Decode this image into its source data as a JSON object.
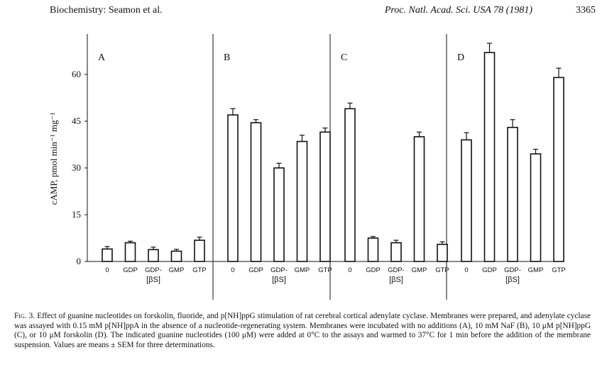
{
  "header": {
    "left": "Biochemistry: Seamon et al.",
    "journal": "Proc. Natl. Acad. Sci. USA 78 (1981)",
    "page_number": "3365"
  },
  "chart_data": {
    "type": "bar",
    "ylabel": "cAMP, pmol min⁻¹ mg⁻¹",
    "ylim": [
      0,
      75
    ],
    "yticks": [
      0,
      15,
      30,
      45,
      60
    ],
    "categories": [
      "0",
      "GDP",
      "GDP-[βS]",
      "GMP",
      "GTP"
    ],
    "category_labels": [
      {
        "line1": "0",
        "line2": ""
      },
      {
        "line1": "GDP",
        "line2": ""
      },
      {
        "line1": "GDP-",
        "line2": "[βS]"
      },
      {
        "line1": "GMP",
        "line2": ""
      },
      {
        "line1": "GTP",
        "line2": ""
      }
    ],
    "panels": [
      {
        "label": "A",
        "values": [
          4.0,
          6.0,
          3.8,
          3.3,
          6.8
        ],
        "errors": [
          0.8,
          0.5,
          0.8,
          0.6,
          1.0
        ]
      },
      {
        "label": "B",
        "values": [
          47.0,
          44.5,
          30.0,
          38.5,
          41.5
        ],
        "errors": [
          2.0,
          1.0,
          1.5,
          2.0,
          1.3
        ]
      },
      {
        "label": "C",
        "values": [
          49.0,
          7.5,
          6.0,
          40.0,
          5.5
        ],
        "errors": [
          1.8,
          0.5,
          0.8,
          1.5,
          0.8
        ]
      },
      {
        "label": "D",
        "values": [
          39.0,
          67.0,
          43.0,
          34.5,
          59.0
        ],
        "errors": [
          2.3,
          3.0,
          2.5,
          1.5,
          3.0
        ]
      }
    ]
  },
  "caption": {
    "figure_label": "Fig. 3.",
    "text": "Effect of guanine nucleotides on forskolin, fluoride, and p[NH]ppG stimulation of rat cerebral cortical adenylate cyclase. Membranes were prepared, and adenylate cyclase was assayed with 0.15 mM p[NH]ppA in the absence of a nucleotide-regenerating system. Membranes were incubated with no additions (A), 10 mM NaF (B), 10 μM p[NH]ppG (C), or 10 μM forskolin (D). The indicated guanine nucleotides (100 μM) were added at 0°C to the assays and warmed to 37°C for 1 min before the addition of the membrane suspension. Values are means ± SEM for three determinations."
  }
}
